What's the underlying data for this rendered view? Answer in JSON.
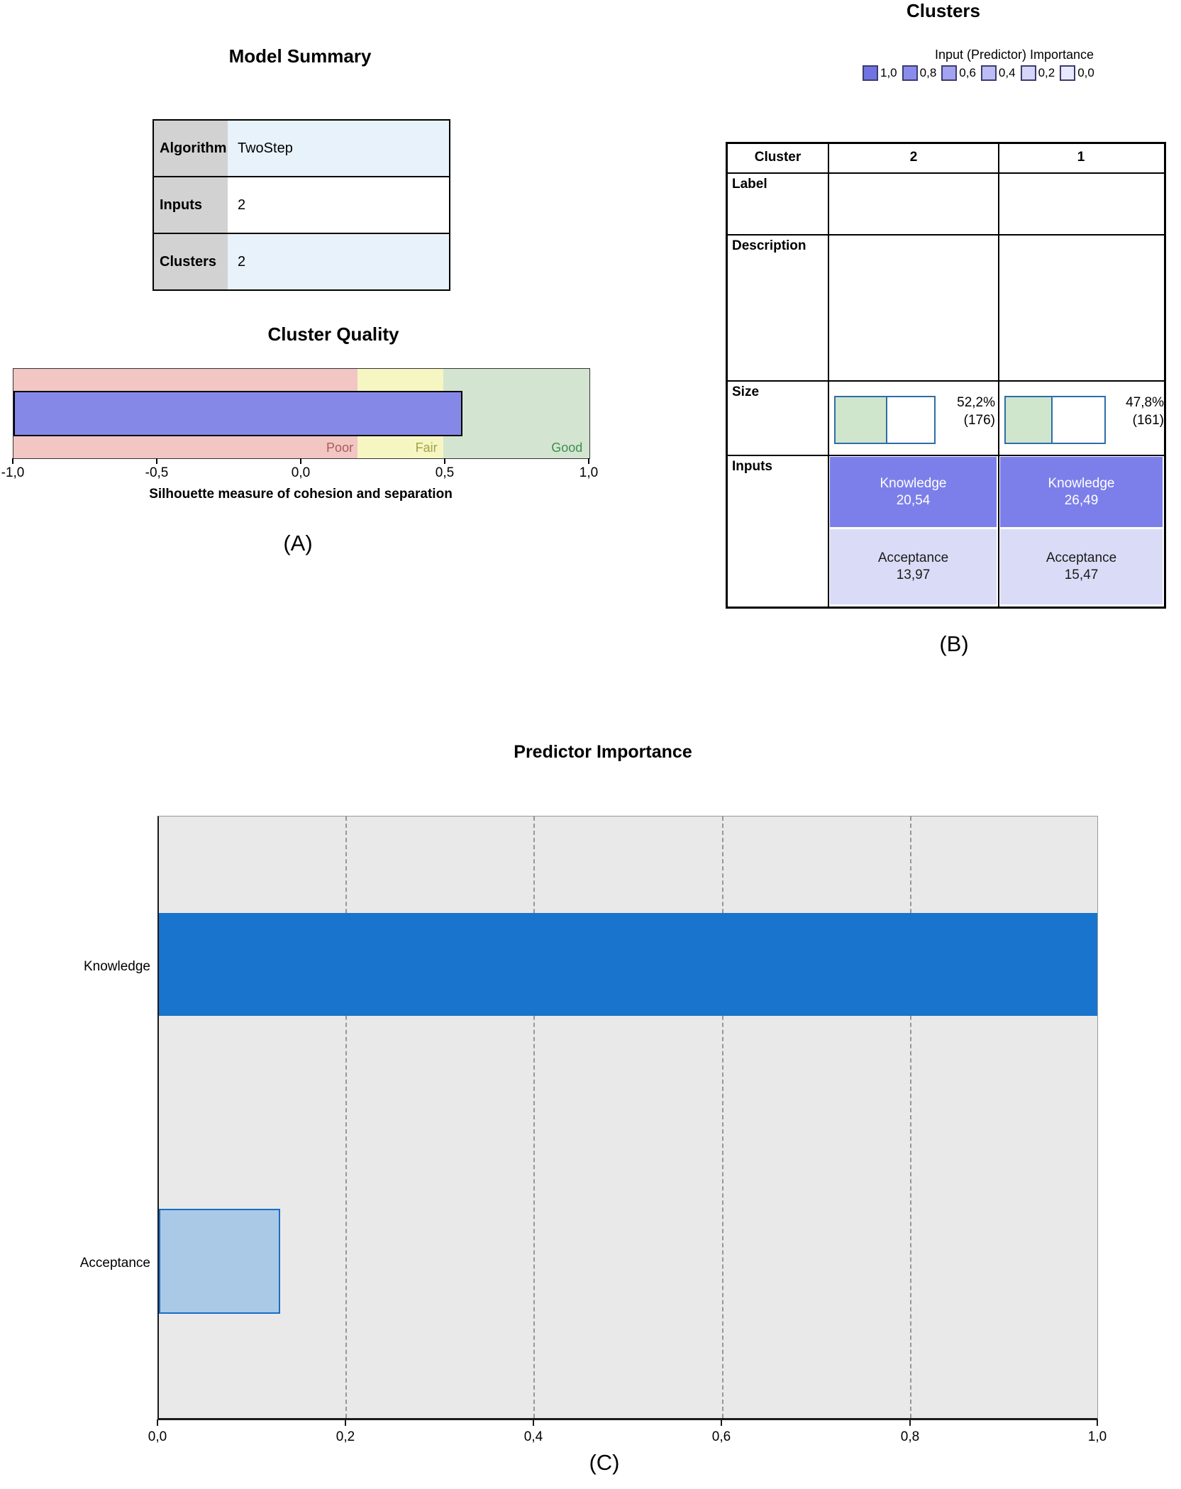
{
  "panel_a": {
    "model_summary": {
      "title": "Model Summary",
      "rows": [
        {
          "label": "Algorithm",
          "value": "TwoStep"
        },
        {
          "label": "Inputs",
          "value": "2"
        },
        {
          "label": "Clusters",
          "value": "2"
        }
      ]
    },
    "cluster_quality": {
      "title": "Cluster Quality",
      "bar_width_pct": 78,
      "regions": [
        {
          "label": "Poor",
          "color": "#f2c6c3",
          "width_pct": 59.7
        },
        {
          "label": "Fair",
          "color": "#f6f6c3",
          "width_pct": 14.9
        },
        {
          "label": "Good",
          "color": "#d3e5d0",
          "width_pct": 25.4
        }
      ],
      "ticks": [
        "-1,0",
        "-0,5",
        "0,0",
        "0,5",
        "1,0"
      ],
      "axis_label": "Silhouette measure of cohesion and separation"
    },
    "caption": "(A)"
  },
  "panel_b": {
    "title": "Clusters",
    "legend": {
      "title": "Input (Predictor) Importance",
      "items": [
        {
          "label": "1,0",
          "color": "#7173e2"
        },
        {
          "label": "0,8",
          "color": "#8a8cec"
        },
        {
          "label": "0,6",
          "color": "#a3a4f0"
        },
        {
          "label": "0,4",
          "color": "#bcbdf4"
        },
        {
          "label": "0,2",
          "color": "#d4d5f8"
        },
        {
          "label": "0,0",
          "color": "#e9e9fc"
        }
      ]
    },
    "table": {
      "corner_header": "Cluster",
      "column_headers": [
        "2",
        "1"
      ],
      "row_labels": [
        "Label",
        "Description",
        "Size",
        "Inputs"
      ],
      "columns": [
        {
          "cluster": "2",
          "size_percent": "52,2%",
          "size_count": "(176)",
          "size_fill_pct": 52.2,
          "inputs": [
            {
              "name": "Knowledge",
              "value": "20,54"
            },
            {
              "name": "Acceptance",
              "value": "13,97"
            }
          ]
        },
        {
          "cluster": "1",
          "size_percent": "47,8%",
          "size_count": "(161)",
          "size_fill_pct": 47.8,
          "inputs": [
            {
              "name": "Knowledge",
              "value": "26,49"
            },
            {
              "name": "Acceptance",
              "value": "15,47"
            }
          ]
        }
      ]
    },
    "caption": "(B)"
  },
  "panel_c": {
    "title": "Predictor Importance",
    "bars": [
      {
        "label": "Knowledge",
        "width_pct": 100
      },
      {
        "label": "Acceptance",
        "width_pct": 12.9
      }
    ],
    "ticks": [
      "0,0",
      "0,2",
      "0,4",
      "0,6",
      "0,8",
      "1,0"
    ],
    "caption": "(C)"
  },
  "chart_data": [
    {
      "type": "table",
      "title": "Model Summary",
      "rows": [
        [
          "Algorithm",
          "TwoStep"
        ],
        [
          "Inputs",
          "2"
        ],
        [
          "Clusters",
          "2"
        ]
      ]
    },
    {
      "type": "bar",
      "title": "Cluster Quality",
      "xlabel": "Silhouette measure of cohesion and separation",
      "xlim": [
        -1.0,
        1.0
      ],
      "tick_labels": [
        "-1,0",
        "-0,5",
        "0,0",
        "0,5",
        "1,0"
      ],
      "bar_value": 0.56,
      "quality_bands": [
        {
          "label": "Poor",
          "from": -1.0,
          "to": 0.2
        },
        {
          "label": "Fair",
          "from": 0.2,
          "to": 0.5
        },
        {
          "label": "Good",
          "from": 0.5,
          "to": 1.0
        }
      ]
    },
    {
      "type": "table",
      "title": "Clusters",
      "legend_title": "Input (Predictor) Importance",
      "legend_levels": [
        1.0,
        0.8,
        0.6,
        0.4,
        0.2,
        0.0
      ],
      "clusters": [
        {
          "cluster": "2",
          "label": "",
          "description": "",
          "size_percent": 52.2,
          "size_count": 176,
          "inputs": [
            {
              "name": "Knowledge",
              "mean": 20.54
            },
            {
              "name": "Acceptance",
              "mean": 13.97
            }
          ]
        },
        {
          "cluster": "1",
          "label": "",
          "description": "",
          "size_percent": 47.8,
          "size_count": 161,
          "inputs": [
            {
              "name": "Knowledge",
              "mean": 26.49
            },
            {
              "name": "Acceptance",
              "mean": 15.47
            }
          ]
        }
      ]
    },
    {
      "type": "bar",
      "title": "Predictor Importance",
      "orientation": "horizontal",
      "categories": [
        "Knowledge",
        "Acceptance"
      ],
      "values": [
        1.0,
        0.13
      ],
      "xlim": [
        0.0,
        1.0
      ],
      "tick_labels": [
        "0,0",
        "0,2",
        "0,4",
        "0,6",
        "0,8",
        "1,0"
      ]
    }
  ]
}
